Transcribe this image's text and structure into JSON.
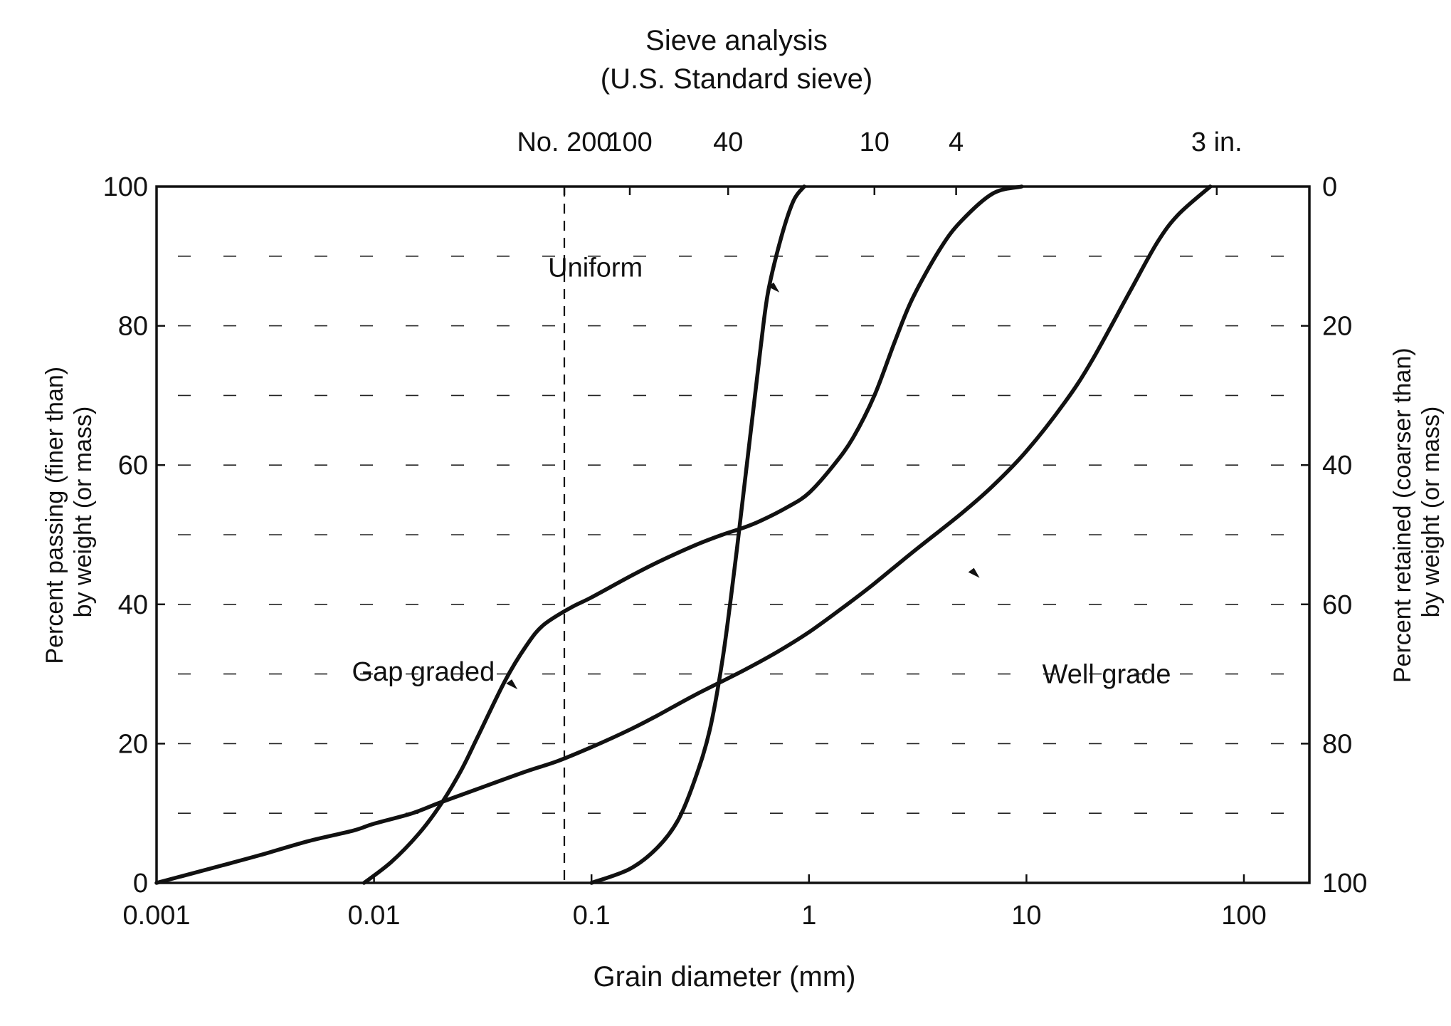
{
  "chart_data": {
    "type": "line",
    "title": "Sieve analysis",
    "subtitle": "(U.S. Standard sieve)",
    "xlabel": "Grain diameter  (mm)",
    "ylabel_left_line1": "Percent passing (finer than)",
    "ylabel_left_line2": "by weight (or mass)",
    "ylabel_right_line1": "Percent retained (coarser than)",
    "ylabel_right_line2": "by weight (or mass)",
    "x_scale": "log",
    "xlim": [
      0.001,
      200
    ],
    "ylim": [
      0,
      100
    ],
    "grid": true,
    "x_ticks": [
      {
        "value": 0.001,
        "label": "0.001"
      },
      {
        "value": 0.01,
        "label": "0.01"
      },
      {
        "value": 0.1,
        "label": "0.1"
      },
      {
        "value": 1,
        "label": "1"
      },
      {
        "value": 10,
        "label": "10"
      },
      {
        "value": 100,
        "label": "100"
      }
    ],
    "y_ticks_left": [
      {
        "value": 0,
        "label": "0"
      },
      {
        "value": 20,
        "label": "20"
      },
      {
        "value": 40,
        "label": "40"
      },
      {
        "value": 60,
        "label": "60"
      },
      {
        "value": 80,
        "label": "80"
      },
      {
        "value": 100,
        "label": "100"
      }
    ],
    "y_ticks_right": [
      {
        "value": 0,
        "label": "100"
      },
      {
        "value": 20,
        "label": "80"
      },
      {
        "value": 40,
        "label": "60"
      },
      {
        "value": 60,
        "label": "40"
      },
      {
        "value": 80,
        "label": "20"
      },
      {
        "value": 100,
        "label": "0"
      }
    ],
    "sieve_ticks": [
      {
        "value": 0.075,
        "label": "No. 200"
      },
      {
        "value": 0.15,
        "label": "100"
      },
      {
        "value": 0.425,
        "label": "40"
      },
      {
        "value": 2.0,
        "label": "10"
      },
      {
        "value": 4.75,
        "label": "4"
      },
      {
        "value": 75,
        "label": "3 in."
      }
    ],
    "no200_line": 0.075,
    "series": [
      {
        "name": "Uniform",
        "x": [
          0.1,
          0.15,
          0.2,
          0.25,
          0.3,
          0.35,
          0.4,
          0.45,
          0.5,
          0.55,
          0.6,
          0.65,
          0.75,
          0.85,
          0.95
        ],
        "y": [
          0,
          2,
          5,
          9,
          15,
          22,
          32,
          44,
          56,
          67,
          77,
          85,
          93,
          98,
          100
        ]
      },
      {
        "name": "Gap graded",
        "x": [
          0.009,
          0.012,
          0.016,
          0.02,
          0.025,
          0.03,
          0.04,
          0.05,
          0.06,
          0.08,
          0.1,
          0.15,
          0.2,
          0.3,
          0.4,
          0.5,
          0.6,
          0.8,
          1.0,
          1.3,
          1.6,
          2.0,
          2.5,
          3.0,
          4.0,
          5.0,
          7.0,
          9.5
        ],
        "y": [
          0,
          3,
          7,
          11,
          16,
          21,
          29,
          34,
          37,
          39.5,
          41,
          44,
          46,
          48.5,
          50,
          51,
          52,
          54,
          56,
          60,
          64,
          70,
          78,
          84,
          91,
          95,
          99,
          100
        ]
      },
      {
        "name": "Well grade",
        "x": [
          0.001,
          0.002,
          0.003,
          0.005,
          0.008,
          0.01,
          0.015,
          0.02,
          0.03,
          0.05,
          0.07,
          0.1,
          0.15,
          0.2,
          0.3,
          0.5,
          0.7,
          1.0,
          1.5,
          2.0,
          3.0,
          5.0,
          7.0,
          10,
          15,
          20,
          30,
          40,
          50,
          70
        ],
        "y": [
          0,
          2.5,
          4,
          6,
          7.5,
          8.5,
          10,
          11.5,
          13.5,
          16,
          17.5,
          19.5,
          22,
          24,
          27,
          30.5,
          33,
          36,
          40,
          43,
          47.5,
          53,
          57,
          62,
          69,
          75,
          85,
          92,
          96,
          100
        ]
      }
    ],
    "annotations": [
      {
        "text": "Uniform",
        "series": "Uniform",
        "x": 0.72,
        "y": 85
      },
      {
        "text": "Gap graded",
        "series": "Gap graded",
        "x": 0.045,
        "y": 28
      },
      {
        "text": "Well grade",
        "series": "Well grade",
        "x": 6.0,
        "y": 44
      }
    ]
  }
}
